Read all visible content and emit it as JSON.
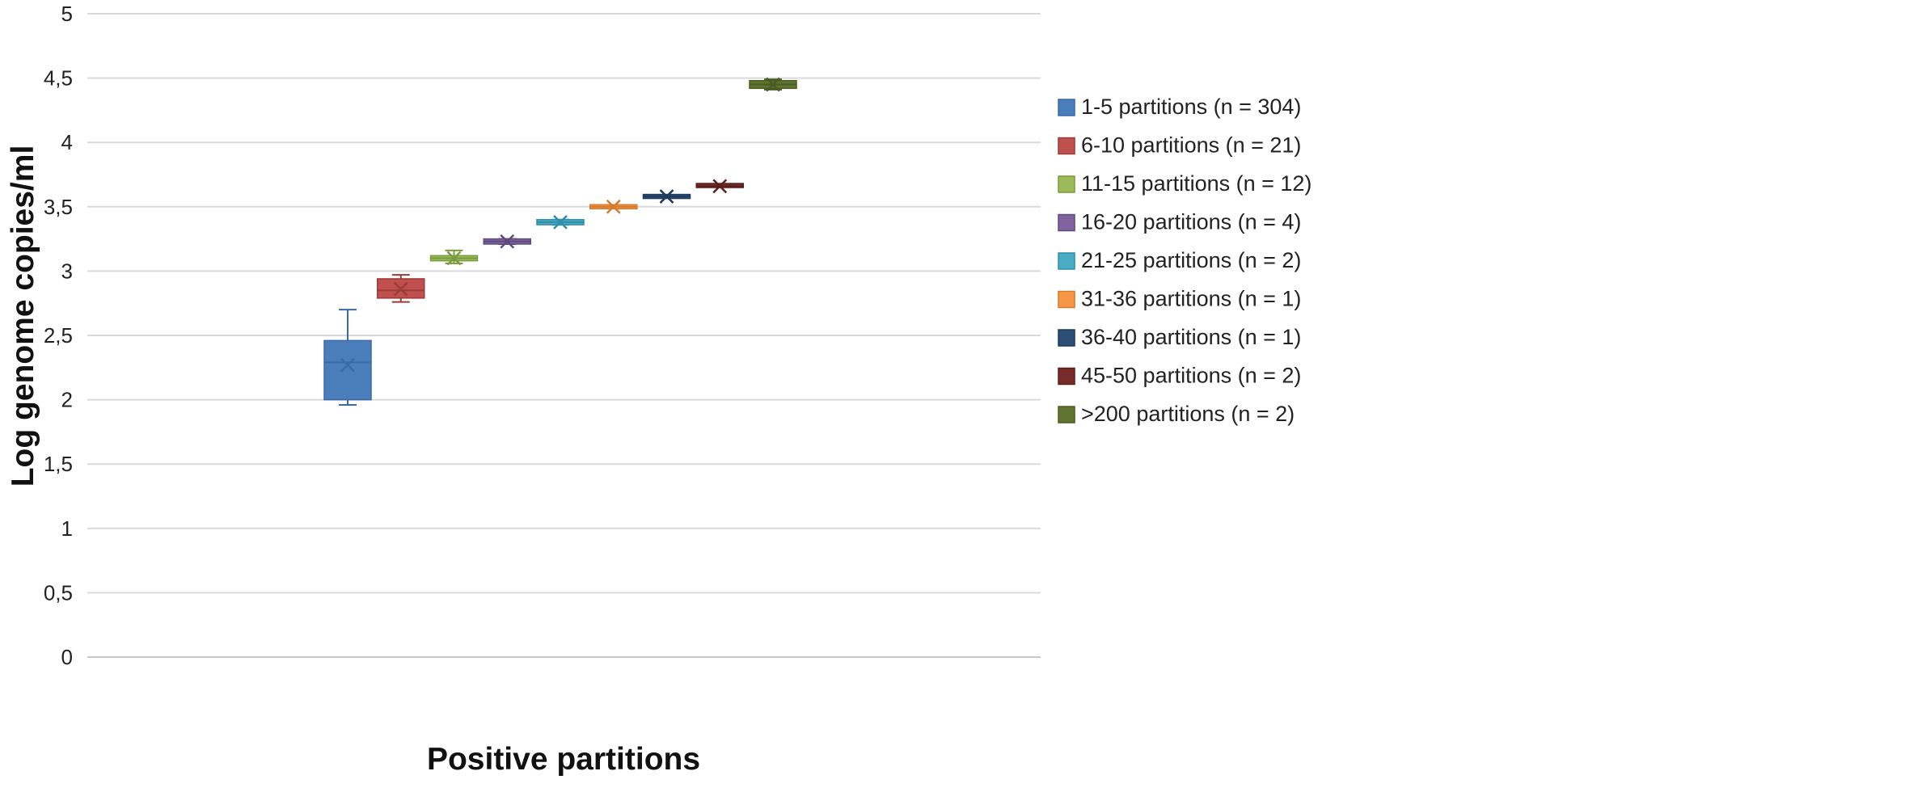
{
  "chart_data": {
    "type": "box",
    "title": "",
    "xlabel": "Positive partitions",
    "ylabel": "Log genome copies/ml",
    "ylim": [
      0,
      5
    ],
    "yticks": [
      "0",
      "0,5",
      "1",
      "1,5",
      "2",
      "2,5",
      "3",
      "3,5",
      "4",
      "4,5",
      "5"
    ],
    "grid": "horizontal",
    "legend_position": "right",
    "series": [
      {
        "name": "1-5 partitions (n = 304)",
        "color": "#4a7ebb",
        "stroke": "#3a6aa3",
        "min": 1.96,
        "q1": 2.0,
        "median": 2.29,
        "q3": 2.46,
        "max": 2.7,
        "mean": 2.27
      },
      {
        "name": "6-10 partitions (n = 21)",
        "color": "#c0504d",
        "stroke": "#9c3b38",
        "min": 2.76,
        "q1": 2.79,
        "median": 2.85,
        "q3": 2.94,
        "max": 2.97,
        "mean": 2.86
      },
      {
        "name": "11-15 partitions (n = 12)",
        "color": "#9bbb59",
        "stroke": "#7a9a3e",
        "min": 3.06,
        "q1": 3.08,
        "median": 3.1,
        "q3": 3.12,
        "max": 3.16,
        "mean": 3.1
      },
      {
        "name": "16-20 partitions (n = 4)",
        "color": "#8064a2",
        "stroke": "#5f4a7d",
        "min": 3.21,
        "q1": 3.21,
        "median": 3.23,
        "q3": 3.25,
        "max": 3.25,
        "mean": 3.23
      },
      {
        "name": "21-25 partitions (n = 2)",
        "color": "#4bacc6",
        "stroke": "#2f8ea8",
        "min": 3.36,
        "q1": 3.36,
        "median": 3.38,
        "q3": 3.4,
        "max": 3.4,
        "mean": 3.38
      },
      {
        "name": "31-36 partitions (n = 1)",
        "color": "#f79646",
        "stroke": "#d47a2c",
        "min": 3.5,
        "q1": 3.5,
        "median": 3.5,
        "q3": 3.5,
        "max": 3.5,
        "mean": 3.5
      },
      {
        "name": "36-40 partitions (n = 1)",
        "color": "#2c4d75",
        "stroke": "#1f3a5c",
        "min": 3.58,
        "q1": 3.58,
        "median": 3.58,
        "q3": 3.58,
        "max": 3.58,
        "mean": 3.58
      },
      {
        "name": "45-50 partitions (n = 2)",
        "color": "#772c2a",
        "stroke": "#5a1f1d",
        "min": 3.66,
        "q1": 3.66,
        "median": 3.66,
        "q3": 3.67,
        "max": 3.67,
        "mean": 3.66
      },
      {
        "name": ">200 partitions (n = 2)",
        "color": "#5f7530",
        "stroke": "#4a5c24",
        "min": 4.41,
        "q1": 4.42,
        "median": 4.45,
        "q3": 4.48,
        "max": 4.49,
        "mean": 4.45
      }
    ]
  }
}
